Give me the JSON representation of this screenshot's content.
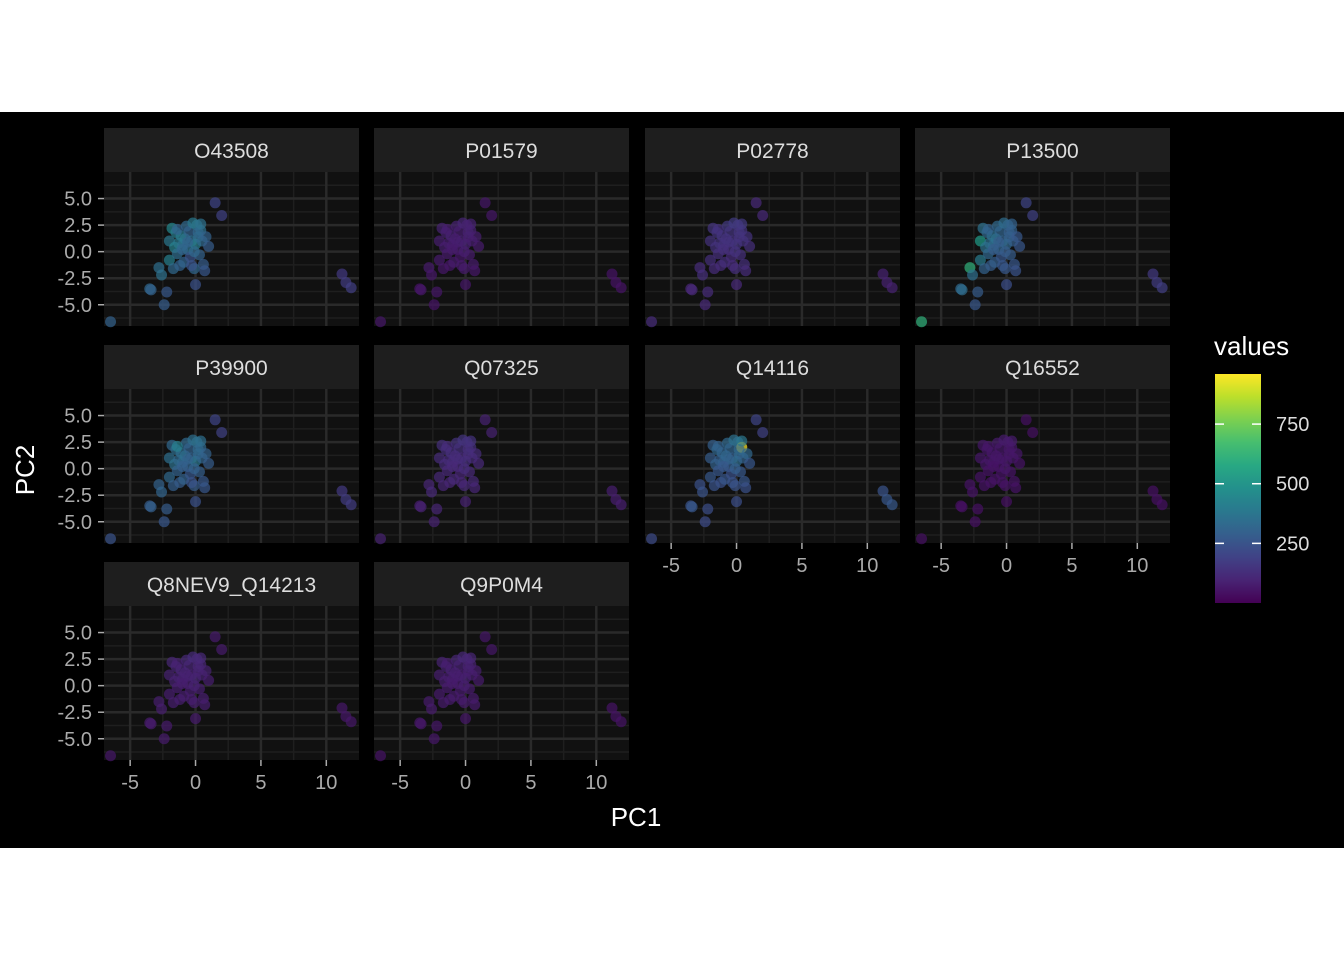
{
  "chart_data": {
    "type": "scatter",
    "layout": "facet-grid",
    "xlabel": "PC1",
    "ylabel": "PC2",
    "xlim": [
      -7,
      12.5
    ],
    "ylim": [
      -7,
      7.5
    ],
    "x_ticks": [
      -5,
      0,
      5,
      10
    ],
    "y_ticks": [
      5.0,
      2.5,
      0.0,
      -2.5,
      -5.0
    ],
    "y_tick_labels": [
      "5.0",
      "2.5",
      "0.0",
      "-2.5",
      "-5.0"
    ],
    "x_tick_labels": [
      "-5",
      "0",
      "5",
      "10"
    ],
    "grid": true,
    "theme": "dark",
    "colors": {
      "background": "#000000",
      "panel": "#111111",
      "strip": "#1e1e1e",
      "grid": "#2a2a2a",
      "text": "#ffffff",
      "tick_text": "#aaaaaa"
    },
    "colorscale": {
      "name": "viridis",
      "label": "values",
      "range": [
        0,
        960
      ],
      "ticks": [
        250,
        500,
        750
      ],
      "legend_position": "right"
    },
    "points": {
      "x": [
        -6.5,
        -3.5,
        -3.4,
        -2.8,
        -2.6,
        -2.4,
        -2.2,
        -2.0,
        -2.0,
        -1.8,
        -1.7,
        -1.6,
        -1.5,
        -1.4,
        -1.3,
        -1.2,
        -1.1,
        -1.0,
        -0.9,
        -0.8,
        -0.7,
        -0.6,
        -0.5,
        -0.4,
        -0.3,
        -0.2,
        -0.1,
        0.0,
        0.1,
        0.2,
        0.3,
        0.4,
        0.5,
        0.6,
        0.7,
        0.0,
        -0.3,
        0.2,
        -0.6,
        0.4,
        -1.0,
        0.8,
        1.0,
        -0.1,
        1.5,
        2.0,
        11.2,
        11.5,
        11.9,
        -1.4
      ],
      "y": [
        -6.6,
        -3.5,
        -3.6,
        -1.5,
        -2.2,
        -5.0,
        -3.8,
        1.0,
        -0.8,
        2.2,
        -1.6,
        0.4,
        1.8,
        -0.2,
        0.8,
        -1.3,
        1.5,
        0.6,
        -1.0,
        1.2,
        2.4,
        0.2,
        1.9,
        -0.5,
        1.0,
        2.7,
        -1.6,
        0.7,
        2.5,
        1.4,
        -0.3,
        2.0,
        1.0,
        -1.2,
        -1.8,
        -3.1,
        -1.3,
        1.8,
        0.9,
        2.6,
        0.2,
        1.4,
        0.5,
        0.0,
        4.6,
        3.4,
        -2.1,
        -2.9,
        -3.4,
        2.1
      ]
    },
    "facets": [
      {
        "label": "O43508",
        "values": [
          300,
          320,
          300,
          350,
          360,
          280,
          270,
          380,
          420,
          450,
          330,
          430,
          410,
          340,
          390,
          300,
          400,
          360,
          310,
          380,
          330,
          370,
          300,
          250,
          350,
          390,
          320,
          420,
          380,
          350,
          300,
          360,
          330,
          280,
          260,
          240,
          250,
          320,
          300,
          360,
          310,
          300,
          280,
          330,
          200,
          190,
          160,
          170,
          180,
          300
        ]
      },
      {
        "label": "P01579",
        "values": [
          60,
          50,
          60,
          70,
          60,
          50,
          60,
          80,
          70,
          90,
          60,
          80,
          90,
          70,
          80,
          60,
          90,
          80,
          70,
          80,
          90,
          70,
          80,
          60,
          90,
          100,
          70,
          90,
          90,
          80,
          70,
          90,
          80,
          70,
          60,
          60,
          70,
          90,
          80,
          90,
          70,
          80,
          70,
          80,
          60,
          60,
          50,
          50,
          50,
          80
        ]
      },
      {
        "label": "P02778",
        "values": [
          120,
          100,
          110,
          120,
          130,
          110,
          120,
          140,
          130,
          150,
          120,
          140,
          150,
          130,
          140,
          120,
          150,
          140,
          130,
          140,
          160,
          130,
          150,
          120,
          140,
          170,
          130,
          150,
          160,
          140,
          130,
          150,
          140,
          130,
          120,
          110,
          120,
          150,
          140,
          160,
          130,
          140,
          130,
          140,
          110,
          110,
          90,
          90,
          90,
          140
        ]
      },
      {
        "label": "P13500",
        "values": [
          620,
          330,
          340,
          620,
          350,
          260,
          280,
          530,
          400,
          360,
          300,
          370,
          330,
          320,
          350,
          280,
          350,
          340,
          290,
          360,
          330,
          320,
          310,
          260,
          300,
          340,
          270,
          330,
          320,
          300,
          280,
          300,
          290,
          260,
          250,
          230,
          260,
          290,
          280,
          300,
          280,
          270,
          260,
          280,
          200,
          190,
          160,
          170,
          180,
          300
        ]
      },
      {
        "label": "P39900",
        "values": [
          250,
          280,
          290,
          300,
          310,
          260,
          280,
          350,
          330,
          320,
          290,
          360,
          340,
          300,
          330,
          280,
          340,
          330,
          300,
          350,
          330,
          310,
          300,
          260,
          300,
          350,
          280,
          380,
          360,
          320,
          290,
          330,
          310,
          270,
          260,
          240,
          250,
          330,
          300,
          350,
          290,
          300,
          280,
          300,
          200,
          190,
          160,
          170,
          170,
          420
        ]
      },
      {
        "label": "Q07325",
        "values": [
          90,
          80,
          90,
          100,
          110,
          90,
          100,
          120,
          110,
          130,
          100,
          120,
          130,
          110,
          120,
          100,
          130,
          120,
          110,
          120,
          140,
          110,
          130,
          100,
          120,
          150,
          110,
          130,
          140,
          120,
          110,
          130,
          120,
          110,
          100,
          90,
          100,
          130,
          120,
          140,
          110,
          120,
          110,
          120,
          90,
          90,
          80,
          80,
          80,
          120
        ]
      },
      {
        "label": "Q14116",
        "values": [
          220,
          250,
          260,
          240,
          250,
          220,
          230,
          280,
          270,
          290,
          250,
          300,
          320,
          260,
          290,
          240,
          310,
          300,
          260,
          320,
          330,
          280,
          310,
          240,
          290,
          360,
          250,
          340,
          350,
          320,
          270,
          960,
          300,
          260,
          240,
          230,
          250,
          330,
          300,
          380,
          270,
          320,
          260,
          290,
          200,
          190,
          250,
          260,
          270,
          300
        ]
      },
      {
        "label": "Q16552",
        "values": [
          40,
          40,
          40,
          50,
          50,
          40,
          40,
          60,
          50,
          60,
          50,
          60,
          60,
          50,
          60,
          50,
          60,
          60,
          50,
          60,
          70,
          50,
          60,
          50,
          60,
          70,
          50,
          60,
          70,
          60,
          50,
          60,
          60,
          50,
          50,
          40,
          50,
          60,
          60,
          70,
          50,
          60,
          50,
          60,
          40,
          40,
          40,
          40,
          40,
          60
        ]
      },
      {
        "label": "Q8NEV9_Q14213",
        "values": [
          60,
          70,
          70,
          80,
          80,
          70,
          70,
          90,
          80,
          100,
          80,
          90,
          100,
          80,
          90,
          80,
          100,
          90,
          80,
          90,
          110,
          80,
          100,
          80,
          90,
          120,
          80,
          100,
          110,
          90,
          80,
          100,
          90,
          80,
          80,
          70,
          80,
          100,
          90,
          110,
          80,
          90,
          80,
          90,
          70,
          70,
          60,
          60,
          60,
          90
        ]
      },
      {
        "label": "Q9P0M4",
        "values": [
          50,
          60,
          60,
          70,
          70,
          60,
          60,
          80,
          70,
          90,
          70,
          80,
          90,
          70,
          80,
          70,
          90,
          80,
          70,
          80,
          100,
          70,
          90,
          70,
          80,
          110,
          70,
          90,
          100,
          80,
          70,
          90,
          80,
          70,
          70,
          60,
          70,
          90,
          80,
          100,
          70,
          80,
          70,
          80,
          60,
          60,
          50,
          50,
          50,
          80
        ]
      }
    ]
  }
}
